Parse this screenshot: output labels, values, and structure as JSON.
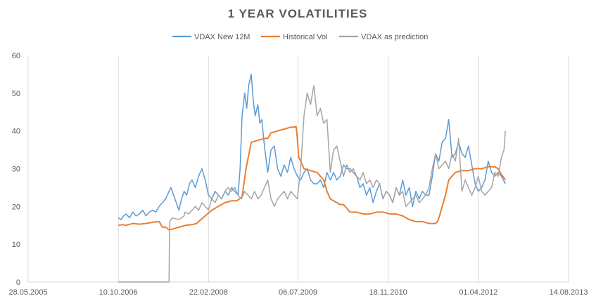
{
  "chart_data": {
    "type": "line",
    "title": "1 YEAR VOLATILITIES",
    "xlabel": "",
    "ylabel": "",
    "ylim": [
      0,
      60
    ],
    "y_ticks": [
      0,
      10,
      20,
      30,
      40,
      50,
      60
    ],
    "x_tick_labels": [
      "28.05.2005",
      "10.10.2006",
      "22.02.2008",
      "06.07.2009",
      "18.11.2010",
      "01.04.2012",
      "14.08.2013"
    ],
    "x_tick_years": [
      2005.41,
      2006.78,
      2008.15,
      2009.51,
      2010.88,
      2012.25,
      2013.62
    ],
    "xlim": [
      2005.41,
      2013.62
    ],
    "grid": "vertical",
    "legend_position": "top",
    "series": [
      {
        "name": "VDAX New 12M",
        "color": "#5b9bd5",
        "x": [
          2006.78,
          2006.82,
          2006.86,
          2006.9,
          2006.95,
          2007.0,
          2007.05,
          2007.1,
          2007.15,
          2007.2,
          2007.25,
          2007.3,
          2007.35,
          2007.4,
          2007.45,
          2007.5,
          2007.55,
          2007.58,
          2007.62,
          2007.66,
          2007.7,
          2007.74,
          2007.78,
          2007.82,
          2007.86,
          2007.9,
          2007.95,
          2008.0,
          2008.05,
          2008.1,
          2008.15,
          2008.2,
          2008.25,
          2008.3,
          2008.35,
          2008.4,
          2008.45,
          2008.5,
          2008.55,
          2008.6,
          2008.63,
          2008.66,
          2008.7,
          2008.73,
          2008.76,
          2008.8,
          2008.83,
          2008.86,
          2008.9,
          2008.93,
          2008.96,
          2009.0,
          2009.05,
          2009.1,
          2009.15,
          2009.2,
          2009.25,
          2009.3,
          2009.35,
          2009.4,
          2009.45,
          2009.5,
          2009.55,
          2009.6,
          2009.65,
          2009.7,
          2009.75,
          2009.8,
          2009.85,
          2009.9,
          2009.95,
          2010.0,
          2010.05,
          2010.1,
          2010.15,
          2010.2,
          2010.25,
          2010.3,
          2010.35,
          2010.4,
          2010.45,
          2010.5,
          2010.55,
          2010.6,
          2010.65,
          2010.7,
          2010.75,
          2010.8,
          2010.85,
          2010.9,
          2010.95,
          2011.0,
          2011.05,
          2011.1,
          2011.15,
          2011.2,
          2011.25,
          2011.3,
          2011.35,
          2011.4,
          2011.45,
          2011.5,
          2011.55,
          2011.6,
          2011.65,
          2011.7,
          2011.75,
          2011.8,
          2011.85,
          2011.9,
          2011.95,
          2012.0,
          2012.05,
          2012.1,
          2012.15,
          2012.2,
          2012.25,
          2012.3,
          2012.35,
          2012.4,
          2012.45,
          2012.5,
          2012.55,
          2012.6,
          2012.66
        ],
        "values": [
          17,
          16.5,
          17.5,
          18,
          17,
          18.5,
          17.5,
          18,
          19,
          17.5,
          18.5,
          19,
          18.5,
          20,
          21,
          22,
          24,
          25,
          23,
          21,
          19,
          22,
          24,
          23,
          26,
          27,
          25,
          28,
          30,
          27,
          23,
          22,
          24,
          23,
          22,
          24,
          23,
          25,
          24,
          23,
          30,
          44,
          50,
          46,
          52,
          55,
          48,
          44,
          47,
          42,
          43,
          36,
          29,
          35,
          36,
          30,
          28,
          31,
          29,
          33,
          30,
          28,
          27,
          29,
          30,
          27,
          26,
          26,
          27,
          25,
          29,
          27,
          29,
          27,
          28,
          31,
          30,
          30,
          29,
          28,
          25,
          26,
          23,
          25,
          21,
          24,
          26,
          22,
          24,
          23,
          21,
          25,
          23,
          27,
          23,
          25,
          20,
          24,
          22,
          24,
          23,
          23,
          28,
          34,
          32,
          37,
          38,
          43,
          33,
          34,
          37,
          34,
          33,
          36,
          31,
          26,
          24,
          25,
          27,
          32,
          29,
          28,
          29,
          28,
          26
        ]
      },
      {
        "name": "Historical Vol",
        "color": "#ed7d31",
        "x": [
          2006.78,
          2006.85,
          2006.9,
          2007.0,
          2007.1,
          2007.2,
          2007.3,
          2007.4,
          2007.45,
          2007.5,
          2007.55,
          2007.6,
          2007.7,
          2007.8,
          2007.9,
          2007.97,
          2008.0,
          2008.1,
          2008.2,
          2008.3,
          2008.4,
          2008.5,
          2008.58,
          2008.62,
          2008.66,
          2008.72,
          2008.8,
          2008.9,
          2009.0,
          2009.05,
          2009.1,
          2009.2,
          2009.3,
          2009.4,
          2009.45,
          2009.48,
          2009.5,
          2009.52,
          2009.55,
          2009.6,
          2009.7,
          2009.8,
          2009.85,
          2009.9,
          2009.95,
          2010.0,
          2010.05,
          2010.1,
          2010.15,
          2010.2,
          2010.25,
          2010.3,
          2010.35,
          2010.4,
          2010.5,
          2010.6,
          2010.7,
          2010.8,
          2010.9,
          2011.0,
          2011.1,
          2011.2,
          2011.3,
          2011.4,
          2011.5,
          2011.55,
          2011.6,
          2011.63,
          2011.66,
          2011.7,
          2011.75,
          2011.8,
          2011.9,
          2012.0,
          2012.1,
          2012.2,
          2012.3,
          2012.4,
          2012.5,
          2012.55,
          2012.6,
          2012.66
        ],
        "values": [
          15,
          15.2,
          15,
          15.5,
          15.3,
          15.5,
          15.8,
          16,
          14.5,
          14.5,
          13.8,
          14,
          14.5,
          15,
          15.2,
          15.5,
          16,
          17.5,
          19,
          20,
          21,
          21.5,
          21.5,
          22,
          22.5,
          30,
          37,
          37.5,
          38,
          38,
          39.5,
          40,
          40.5,
          41,
          41,
          41.2,
          38,
          33,
          32,
          30,
          29.5,
          29,
          28,
          27,
          24,
          22,
          21.5,
          21,
          20.5,
          20.5,
          19.5,
          18.5,
          18.5,
          18.5,
          18,
          18,
          18.5,
          18.5,
          18,
          18,
          17.5,
          16.5,
          16,
          16,
          15.5,
          15.5,
          15.5,
          16,
          17.5,
          20,
          23,
          27,
          29,
          29.5,
          29.5,
          30,
          30,
          30.5,
          30.5,
          30,
          28.5,
          27
        ]
      },
      {
        "name": "VDAX as prediction",
        "color": "#a5a5a5",
        "x": [
          2006.78,
          2006.9,
          2007.0,
          2007.1,
          2007.2,
          2007.3,
          2007.4,
          2007.5,
          2007.55,
          2007.56,
          2007.6,
          2007.7,
          2007.78,
          2007.79,
          2007.85,
          2007.9,
          2007.95,
          2008.0,
          2008.05,
          2008.1,
          2008.15,
          2008.2,
          2008.25,
          2008.3,
          2008.35,
          2008.4,
          2008.45,
          2008.5,
          2008.55,
          2008.6,
          2008.65,
          2008.7,
          2008.75,
          2008.8,
          2008.85,
          2008.9,
          2008.95,
          2009.0,
          2009.05,
          2009.1,
          2009.15,
          2009.2,
          2009.25,
          2009.3,
          2009.35,
          2009.4,
          2009.45,
          2009.5,
          2009.55,
          2009.6,
          2009.65,
          2009.7,
          2009.75,
          2009.8,
          2009.85,
          2009.9,
          2009.95,
          2010.0,
          2010.05,
          2010.1,
          2010.15,
          2010.2,
          2010.25,
          2010.3,
          2010.35,
          2010.4,
          2010.45,
          2010.5,
          2010.55,
          2010.6,
          2010.65,
          2010.7,
          2010.75,
          2010.8,
          2010.85,
          2010.9,
          2010.95,
          2011.0,
          2011.05,
          2011.1,
          2011.15,
          2011.2,
          2011.25,
          2011.3,
          2011.35,
          2011.4,
          2011.45,
          2011.5,
          2011.55,
          2011.6,
          2011.65,
          2011.7,
          2011.75,
          2011.8,
          2011.85,
          2011.9,
          2011.95,
          2012.0,
          2012.05,
          2012.1,
          2012.15,
          2012.2,
          2012.25,
          2012.3,
          2012.35,
          2012.4,
          2012.45,
          2012.5,
          2012.55,
          2012.6,
          2012.64,
          2012.66
        ],
        "values": [
          0,
          0,
          0,
          0,
          0,
          0,
          0,
          0,
          0,
          16,
          17,
          16.5,
          17.5,
          18.5,
          18,
          19,
          20,
          19,
          21,
          20,
          19,
          22,
          21,
          23,
          22,
          24,
          25,
          24,
          25,
          23,
          22,
          24,
          23,
          22,
          24,
          22,
          23,
          25,
          27,
          22,
          20,
          22,
          23,
          24,
          22,
          24,
          23,
          22,
          30,
          44,
          50,
          47,
          52,
          44,
          46,
          42,
          43,
          29,
          35,
          36,
          32,
          28,
          31,
          29,
          30,
          28,
          27,
          29,
          26,
          27,
          25,
          27,
          26,
          22,
          24,
          23,
          21,
          25,
          23,
          24,
          20,
          21,
          22,
          23,
          21,
          22,
          23,
          25,
          30,
          34,
          30,
          31,
          32,
          30,
          34,
          32,
          38,
          24,
          27,
          25,
          23,
          25,
          28,
          24,
          23,
          24,
          25,
          29,
          28,
          33,
          35,
          40
        ]
      }
    ]
  }
}
